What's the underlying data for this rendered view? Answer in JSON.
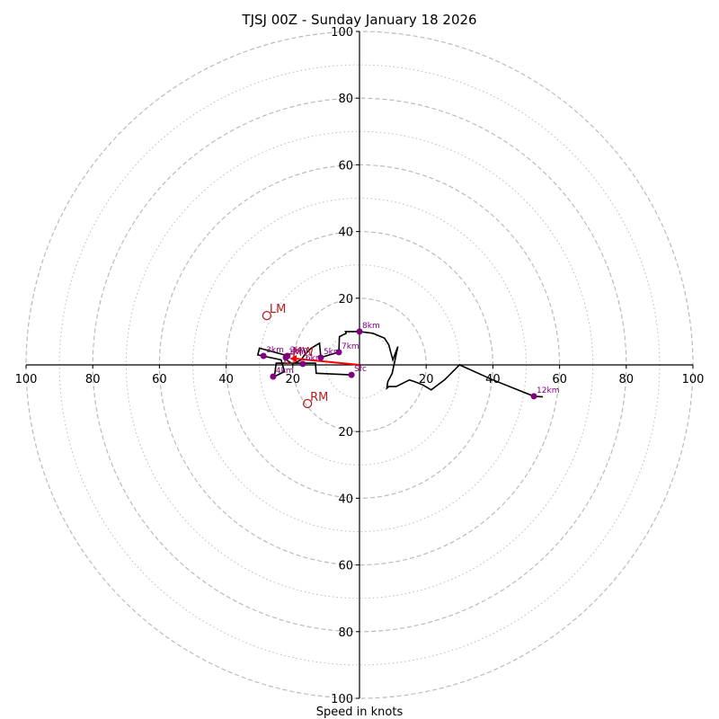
{
  "chart_data": {
    "type": "line",
    "subtype": "hodograph",
    "title": "TJSJ 00Z - Sunday January 18 2026",
    "xlabel": "Speed in knots",
    "ylabel": "",
    "range_knots": 100,
    "ring_major": [
      20,
      40,
      60,
      80,
      100
    ],
    "ring_minor": [
      10,
      30,
      50,
      70,
      90
    ],
    "x_tick_labels": [
      "100",
      "80",
      "60",
      "40",
      "20",
      "20",
      "40",
      "60",
      "80",
      "100"
    ],
    "x_tick_values": [
      -100,
      -80,
      -60,
      -40,
      -20,
      20,
      40,
      60,
      80,
      100
    ],
    "y_tick_labels": [
      "100",
      "80",
      "60",
      "40",
      "20",
      "20",
      "40",
      "60",
      "80",
      "100"
    ],
    "y_tick_values": [
      100,
      80,
      60,
      40,
      20,
      -20,
      -40,
      -60,
      -80,
      -100
    ],
    "grid": true,
    "colors": {
      "trace": "#000000",
      "height_markers": "#800080",
      "storm_motion": "#b22222",
      "shear_vector": "#ff0000",
      "grid": "#bbbbbb"
    },
    "trace": {
      "name": "wind profile",
      "u": [
        -2.4,
        -13.0,
        -13.2,
        -25.0,
        -25.5,
        -22.5,
        -23.5,
        -30.5,
        -30.0,
        -22.5,
        -22.0,
        -20.0,
        -17.5,
        -16.5,
        -14.5,
        -12.0,
        -11.6,
        -9.0,
        -6.2,
        -6.0,
        -4.0,
        -4.2,
        0.0,
        4.0,
        7.5,
        8.8,
        10.0,
        11.5,
        9.8,
        8.5,
        8.2,
        8.8,
        11.0,
        15.0,
        16.5,
        19.0,
        21.5,
        25.5,
        30.0,
        40.0,
        52.3,
        55.0
      ],
      "v": [
        -3.0,
        -2.5,
        0.5,
        0.5,
        -3.5,
        -2.0,
        1.5,
        3.0,
        5.0,
        3.0,
        1.5,
        0.3,
        1.5,
        3.0,
        5.0,
        6.5,
        2.2,
        3.0,
        3.8,
        8.5,
        9.5,
        10.0,
        10.0,
        9.5,
        8.0,
        6.0,
        1.5,
        5.5,
        -2.5,
        -5.0,
        -7.0,
        -6.5,
        -6.5,
        -4.5,
        -5.0,
        -6.0,
        -7.5,
        -4.5,
        0.0,
        -4.5,
        -9.4,
        -9.6
      ]
    },
    "height_markers": [
      {
        "label": "Sfc",
        "u": -2.4,
        "v": -3.0
      },
      {
        "label": "1km",
        "u": -22.1,
        "v": 2.2
      },
      {
        "label": "2km",
        "u": -21.6,
        "v": 2.7
      },
      {
        "label": "3km",
        "u": -28.8,
        "v": 2.7
      },
      {
        "label": "4km",
        "u": -25.9,
        "v": -3.5
      },
      {
        "label": "5km",
        "u": -11.6,
        "v": 2.2
      },
      {
        "label": "6km",
        "u": -17.0,
        "v": 0.3
      },
      {
        "label": "7km",
        "u": -6.2,
        "v": 3.8
      },
      {
        "label": "8km",
        "u": 0.0,
        "v": 10.0
      },
      {
        "label": "12km",
        "u": 52.3,
        "v": -9.4
      }
    ],
    "storm_motion": [
      {
        "label": "LM",
        "u": -27.8,
        "v": 14.8
      },
      {
        "label": "RM",
        "u": -15.6,
        "v": -11.6
      }
    ],
    "mean_wind": {
      "label": "MW",
      "u": -21.0,
      "v": 1.9
    },
    "shear_vector": {
      "from_u": 0.0,
      "from_v": 0.0,
      "to_u": -21.0,
      "to_v": 1.9
    }
  }
}
